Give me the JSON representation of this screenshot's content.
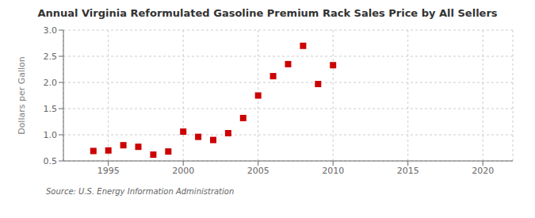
{
  "chart_data": {
    "type": "scatter",
    "title": "Annual Virginia Reformulated Gasoline Premium Rack Sales Price by All Sellers",
    "y_label": "Dollars per Gallon",
    "annotations": [
      "Source: U.S. Energy Information Administration"
    ],
    "x": [
      1994,
      1995,
      1996,
      1997,
      1998,
      1999,
      2000,
      2001,
      2002,
      2003,
      2004,
      2005,
      2006,
      2007,
      2008,
      2009,
      2010
    ],
    "values": [
      0.69,
      0.7,
      0.8,
      0.77,
      0.62,
      0.68,
      1.06,
      0.96,
      0.9,
      1.03,
      1.32,
      1.75,
      2.12,
      2.35,
      2.7,
      1.97,
      2.33
    ],
    "color": "#cc0000",
    "marker": "square",
    "xlim": [
      1992,
      2022
    ],
    "ylim": [
      0.5,
      3.0
    ],
    "xticks": [
      1995,
      2000,
      2005,
      2010,
      2015,
      2020
    ],
    "yticks": [
      0.5,
      {
        "value": 1,
        "label": "1.0"
      },
      1.5,
      {
        "value": 2,
        "label": "2.0"
      },
      2.5,
      {
        "value": 3,
        "label": "3.0"
      }
    ],
    "grid": true
  }
}
